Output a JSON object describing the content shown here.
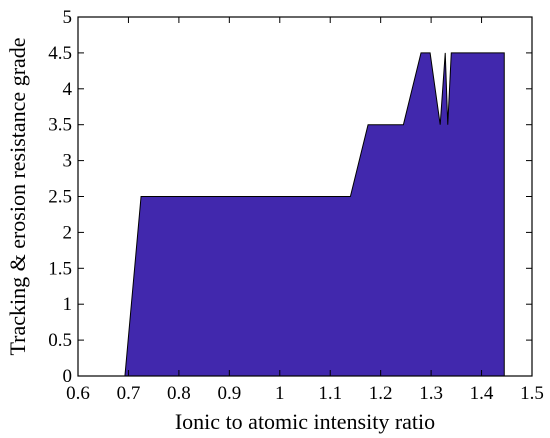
{
  "chart_data": {
    "type": "area",
    "title": "",
    "xlabel": "Ionic to atomic intensity ratio",
    "ylabel": "Tracking & erosion resistance grade",
    "xlim": [
      0.6,
      1.5
    ],
    "ylim": [
      0,
      5
    ],
    "xticks": [
      "0.6",
      "0.7",
      "0.8",
      "0.9",
      "1",
      "1.1",
      "1.2",
      "1.3",
      "1.4",
      "1.5"
    ],
    "yticks": [
      "0",
      "0.5",
      "1",
      "1.5",
      "2",
      "2.5",
      "3",
      "3.5",
      "4",
      "4.5",
      "5"
    ],
    "grid": false,
    "legend": "none",
    "fill_color": "#4128ad",
    "series": [
      {
        "x": [
          0.693,
          0.725,
          1.14,
          1.175,
          1.245,
          1.28,
          1.298,
          1.318,
          1.328,
          1.333,
          1.34,
          1.445
        ],
        "values": [
          0,
          2.5,
          2.5,
          3.5,
          3.5,
          4.5,
          4.5,
          3.5,
          4.5,
          3.5,
          4.5,
          4.5
        ]
      }
    ]
  }
}
